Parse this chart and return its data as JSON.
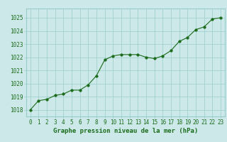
{
  "x": [
    0,
    1,
    2,
    3,
    4,
    5,
    6,
    7,
    8,
    9,
    10,
    11,
    12,
    13,
    14,
    15,
    16,
    17,
    18,
    19,
    20,
    21,
    22,
    23
  ],
  "y": [
    1018.0,
    1018.7,
    1018.8,
    1019.1,
    1019.2,
    1019.5,
    1019.5,
    1019.9,
    1020.6,
    1021.8,
    1022.1,
    1022.2,
    1022.2,
    1022.2,
    1022.0,
    1021.9,
    1022.1,
    1022.5,
    1023.2,
    1023.5,
    1024.1,
    1024.3,
    1024.9,
    1025.0
  ],
  "line_color": "#1a6b1a",
  "marker_color": "#1a6b1a",
  "bg_color": "#cce8e8",
  "grid_color": "#99cccc",
  "xlabel": "Graphe pression niveau de la mer (hPa)",
  "xlabel_color": "#1a6b1a",
  "tick_color": "#1a6b1a",
  "ylim": [
    1017.5,
    1025.7
  ],
  "yticks": [
    1018,
    1019,
    1020,
    1021,
    1022,
    1023,
    1024,
    1025
  ],
  "xticks": [
    0,
    1,
    2,
    3,
    4,
    5,
    6,
    7,
    8,
    9,
    10,
    11,
    12,
    13,
    14,
    15,
    16,
    17,
    18,
    19,
    20,
    21,
    22,
    23
  ],
  "tick_fontsize": 5.5,
  "xlabel_fontsize": 6.5,
  "marker_size": 2.5,
  "linewidth": 0.8
}
